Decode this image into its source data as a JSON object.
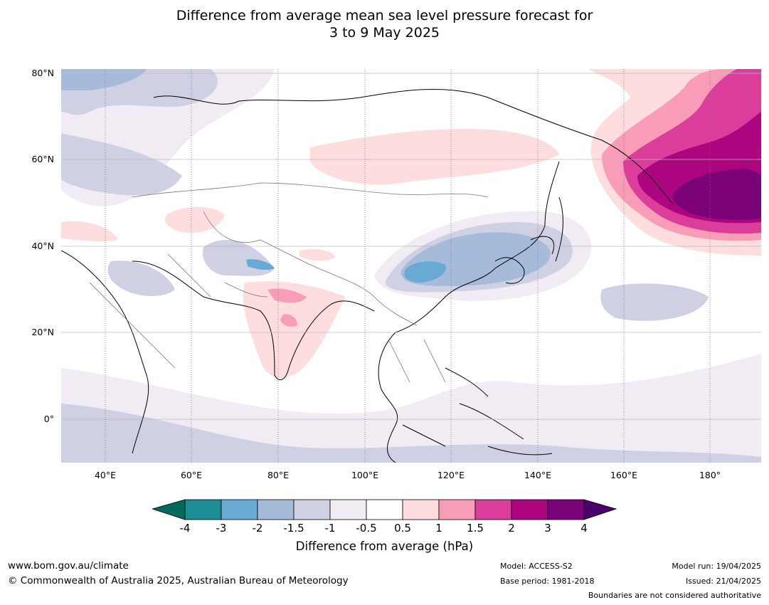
{
  "title": {
    "line1": "Difference from average mean sea level pressure forecast for",
    "line2": "3 to 9 May 2025"
  },
  "map": {
    "lat_labels": [
      "80°N",
      "60°N",
      "40°N",
      "20°N",
      "0°"
    ],
    "lon_labels": [
      "40°E",
      "60°E",
      "80°E",
      "100°E",
      "120°E",
      "140°E",
      "160°E",
      "180°"
    ]
  },
  "colorbar": {
    "label": "Difference from average (hPa)",
    "ticks": [
      "-4",
      "-3",
      "-2",
      "-1.5",
      "-1",
      "-0.5",
      "0.5",
      "1",
      "1.5",
      "2",
      "3",
      "4"
    ],
    "colors": {
      "below_min": "#00695c",
      "bins": [
        "#1b8e93",
        "#68aad4",
        "#a6bbd9",
        "#cfd0e4",
        "#f1ebf4",
        "#ffffff",
        "#fdddde",
        "#f99cb7",
        "#db3d9b",
        "#ad0580",
        "#7a0177"
      ],
      "above_max": "#4a006a"
    }
  },
  "footer": {
    "url": "www.bom.gov.au/climate",
    "copyright": "© Commonwealth of Australia 2025, Australian Bureau of Meteorology",
    "model": "Model: ACCESS-S2",
    "base_period": "Base period: 1981-2018",
    "model_run": "Model run: 19/04/2025",
    "issued": "Issued: 21/04/2025",
    "boundaries": "Boundaries are not considered authoritative"
  }
}
